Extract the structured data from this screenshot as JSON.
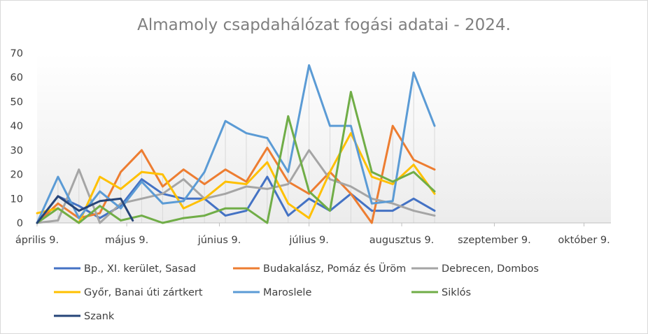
{
  "chart_data": {
    "type": "line",
    "title": "Almamoly csapdahálózat fogási adatai - 2024.",
    "xlabel": "",
    "ylabel": "",
    "ylim": [
      0,
      70
    ],
    "yticks": [
      0,
      10,
      20,
      30,
      40,
      50,
      60,
      70
    ],
    "xlim": [
      "2024-04-09",
      "2024-10-18"
    ],
    "xticks": [
      {
        "date": "2024-04-09",
        "label": "április 9."
      },
      {
        "date": "2024-05-09",
        "label": "május 9."
      },
      {
        "date": "2024-06-09",
        "label": "június 9."
      },
      {
        "date": "2024-07-09",
        "label": "július 9."
      },
      {
        "date": "2024-08-09",
        "label": "augusztus 9."
      },
      {
        "date": "2024-09-09",
        "label": "szeptember 9."
      },
      {
        "date": "2024-10-09",
        "label": "október 9."
      }
    ],
    "grid": "vertical drop lines at sampling dates",
    "legend_position": "bottom",
    "series": [
      {
        "name": "Bp., XI. kerület, Sasad",
        "color": "#4472c4",
        "x": [
          "2024-04-09",
          "2024-04-16",
          "2024-04-23",
          "2024-04-30",
          "2024-05-07",
          "2024-05-14",
          "2024-05-21",
          "2024-05-28",
          "2024-06-04",
          "2024-06-11",
          "2024-06-18",
          "2024-06-25",
          "2024-07-02",
          "2024-07-09",
          "2024-07-16",
          "2024-07-23",
          "2024-07-30",
          "2024-08-06",
          "2024-08-13",
          "2024-08-20"
        ],
        "y": [
          0,
          11,
          7,
          2,
          7,
          18,
          12,
          10,
          10,
          3,
          5,
          19,
          3,
          10,
          5,
          12,
          5,
          5,
          10,
          5
        ]
      },
      {
        "name": "Budakalász, Pomáz és Üröm",
        "color": "#ed7d31",
        "x": [
          "2024-04-09",
          "2024-04-16",
          "2024-04-23",
          "2024-04-30",
          "2024-05-07",
          "2024-05-14",
          "2024-05-21",
          "2024-05-28",
          "2024-06-04",
          "2024-06-11",
          "2024-06-18",
          "2024-06-25",
          "2024-07-02",
          "2024-07-09",
          "2024-07-16",
          "2024-07-23",
          "2024-07-30",
          "2024-08-06",
          "2024-08-13",
          "2024-08-20"
        ],
        "y": [
          0,
          8,
          2,
          4,
          21,
          30,
          15,
          22,
          16,
          22,
          17,
          31,
          17,
          12,
          21,
          12,
          0,
          40,
          26,
          22
        ]
      },
      {
        "name": "Debrecen, Dombos",
        "color": "#a5a5a5",
        "x": [
          "2024-04-09",
          "2024-04-16",
          "2024-04-23",
          "2024-04-30",
          "2024-05-07",
          "2024-05-14",
          "2024-05-21",
          "2024-05-28",
          "2024-06-04",
          "2024-06-11",
          "2024-06-18",
          "2024-06-25",
          "2024-07-02",
          "2024-07-09",
          "2024-07-16",
          "2024-07-23",
          "2024-07-30",
          "2024-08-06",
          "2024-08-13",
          "2024-08-20"
        ],
        "y": [
          0,
          1,
          22,
          0,
          8,
          10,
          12,
          18,
          10,
          12,
          15,
          14,
          16,
          30,
          18,
          15,
          10,
          8,
          5,
          3
        ]
      },
      {
        "name": "Győr, Banai úti zártkert",
        "color": "#ffc000",
        "x": [
          "2024-04-09",
          "2024-04-16",
          "2024-04-23",
          "2024-04-30",
          "2024-05-07",
          "2024-05-14",
          "2024-05-21",
          "2024-05-28",
          "2024-06-04",
          "2024-06-11",
          "2024-06-18",
          "2024-06-25",
          "2024-07-02",
          "2024-07-09",
          "2024-07-16",
          "2024-07-23",
          "2024-07-30",
          "2024-08-06",
          "2024-08-13",
          "2024-08-20"
        ],
        "y": [
          4,
          6,
          0,
          19,
          14,
          21,
          20,
          6,
          10,
          17,
          16,
          25,
          8,
          2,
          21,
          37,
          19,
          16,
          24,
          12
        ]
      },
      {
        "name": "Maroslele",
        "color": "#5b9bd5",
        "x": [
          "2024-04-09",
          "2024-04-16",
          "2024-04-23",
          "2024-04-30",
          "2024-05-07",
          "2024-05-14",
          "2024-05-21",
          "2024-05-28",
          "2024-06-04",
          "2024-06-11",
          "2024-06-18",
          "2024-06-25",
          "2024-07-02",
          "2024-07-09",
          "2024-07-16",
          "2024-07-23",
          "2024-07-30",
          "2024-08-06",
          "2024-08-13",
          "2024-08-20"
        ],
        "y": [
          0,
          19,
          2,
          13,
          6,
          17,
          8,
          9,
          21,
          42,
          37,
          35,
          21,
          65,
          40,
          40,
          8,
          9,
          62,
          40
        ]
      },
      {
        "name": "Siklós",
        "color": "#70ad47",
        "x": [
          "2024-04-09",
          "2024-04-16",
          "2024-04-23",
          "2024-04-30",
          "2024-05-07",
          "2024-05-14",
          "2024-05-21",
          "2024-05-28",
          "2024-06-04",
          "2024-06-11",
          "2024-06-18",
          "2024-06-25",
          "2024-07-02",
          "2024-07-09",
          "2024-07-16",
          "2024-07-23",
          "2024-07-30",
          "2024-08-06",
          "2024-08-13",
          "2024-08-20"
        ],
        "y": [
          0,
          6,
          0,
          7,
          1,
          3,
          0,
          2,
          3,
          6,
          6,
          0,
          44,
          13,
          5,
          54,
          21,
          17,
          21,
          13
        ]
      },
      {
        "name": "Szank",
        "color": "#264478",
        "x": [
          "2024-04-09",
          "2024-04-16",
          "2024-04-23",
          "2024-04-30",
          "2024-05-07",
          "2024-05-11"
        ],
        "y": [
          0,
          11,
          5,
          9,
          10,
          1
        ]
      }
    ]
  }
}
